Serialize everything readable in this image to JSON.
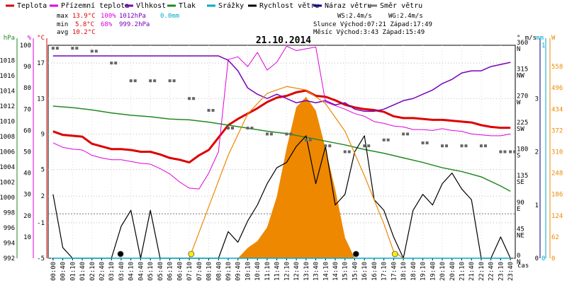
{
  "legend": [
    {
      "label": "Teplota",
      "color": "#dd0000"
    },
    {
      "label": "Přízemní teplota",
      "color": "#dd00dd"
    },
    {
      "label": "Vlhkost",
      "color": "#7700bb"
    },
    {
      "label": "Tlak",
      "color": "#228822"
    },
    {
      "label": "Srážky",
      "color": "#00aacc"
    },
    {
      "label": "Rychlost větru",
      "color": "#000000"
    },
    {
      "label": "Náraz větru",
      "color": "#000088"
    },
    {
      "label": "Směr větru",
      "color": "#777777"
    }
  ],
  "stats": {
    "max_label": "max",
    "max_temp": "13.9°C",
    "max_hum": "100%",
    "max_press": "1012hPa",
    "max_rain": "0.0mm",
    "min_label": "min",
    "min_temp": "5.8°C",
    "min_hum": "68%",
    "min_press": "999.2hPa",
    "avg_label": "avg",
    "avg_temp": "10.2°C",
    "ws": "WS:2.4m/s",
    "wg": "WG:2.4m/s",
    "sun": "Slunce Východ:07:21  Západ:17:49",
    "moon": "Měsíc  Východ:3:43  Západ:15:49"
  },
  "colors": {
    "temp": "#dd0000",
    "feels": "#dd00dd",
    "hum": "#7700bb",
    "press": "#228822",
    "rain": "#00aacc",
    "wind": "#000000",
    "gust": "#000088",
    "dir": "#666666",
    "sun": "#ee8800"
  },
  "chart_data": {
    "type": "line",
    "title": "21.10.2014",
    "x_ticks": [
      "00:00",
      "00:40",
      "01:10",
      "01:40",
      "02:10",
      "02:40",
      "03:10",
      "03:40",
      "04:10",
      "04:40",
      "05:10",
      "05:40",
      "06:10",
      "06:40",
      "07:10",
      "07:40",
      "08:10",
      "08:40",
      "09:10",
      "09:40",
      "10:10",
      "10:40",
      "11:10",
      "11:40",
      "12:10",
      "12:40",
      "13:10",
      "13:40",
      "14:10",
      "14:40",
      "15:10",
      "15:40",
      "16:10",
      "16:40",
      "17:10",
      "17:40",
      "18:10",
      "18:40",
      "19:10",
      "19:40",
      "20:10",
      "20:40",
      "21:10",
      "21:40",
      "22:10",
      "22:40",
      "23:10",
      "23:40"
    ],
    "x_axis_label": "čas",
    "axes": {
      "hpa": {
        "label": "hPa",
        "ticks": [
          992,
          994,
          996,
          998,
          1000,
          1002,
          1004,
          1006,
          1008,
          1010,
          1012,
          1014,
          1016,
          1018
        ],
        "range": [
          992,
          1020
        ]
      },
      "percent": {
        "label": "%",
        "ticks": [
          10,
          20,
          30,
          40,
          50,
          60,
          70,
          80,
          90,
          100
        ],
        "range": [
          0,
          100
        ]
      },
      "celsius": {
        "label": "°C",
        "ticks": [
          -5,
          -1,
          2,
          5,
          9,
          13,
          17
        ],
        "range": [
          -5,
          19
        ]
      },
      "degrees": {
        "label": "°",
        "ticks": [
          "0 N",
          "45 NE",
          "90 E",
          "135 SE",
          "180 S",
          "225 SW",
          "270 W",
          "315 NW",
          "360 N"
        ],
        "range": [
          0,
          360
        ]
      },
      "wind_ms": {
        "label": "m/s",
        "ticks": [
          0,
          1,
          2,
          3
        ],
        "range": [
          0,
          4
        ]
      },
      "rain_mm": {
        "label": "mm",
        "ticks": [
          0,
          1
        ],
        "range": [
          0,
          1
        ]
      },
      "solar_w": {
        "label": "W",
        "ticks": [
          0,
          62,
          124,
          186,
          248,
          310,
          372,
          434,
          496,
          558
        ],
        "range": [
          0,
          620
        ]
      }
    },
    "series": [
      {
        "name": "Teplota",
        "unit": "°C",
        "points": [
          [
            0,
            9.3
          ],
          [
            1,
            8.9
          ],
          [
            2,
            8.8
          ],
          [
            3,
            8.7
          ],
          [
            4,
            7.9
          ],
          [
            5,
            7.6
          ],
          [
            6,
            7.3
          ],
          [
            7,
            7.3
          ],
          [
            8,
            7.2
          ],
          [
            9,
            7.0
          ],
          [
            10,
            7.0
          ],
          [
            11,
            6.7
          ],
          [
            12,
            6.3
          ],
          [
            13,
            6.1
          ],
          [
            14,
            5.8
          ],
          [
            15,
            6.6
          ],
          [
            16,
            7.2
          ],
          [
            17,
            8.6
          ],
          [
            18,
            10.0
          ],
          [
            19,
            10.7
          ],
          [
            20,
            11.3
          ],
          [
            21,
            11.9
          ],
          [
            22,
            12.6
          ],
          [
            23,
            13.1
          ],
          [
            24,
            13.3
          ],
          [
            25,
            13.7
          ],
          [
            26,
            13.9
          ],
          [
            27,
            13.3
          ],
          [
            28,
            13.2
          ],
          [
            29,
            12.8
          ],
          [
            30,
            12.3
          ],
          [
            31,
            12.0
          ],
          [
            32,
            11.8
          ],
          [
            33,
            11.7
          ],
          [
            34,
            11.5
          ],
          [
            35,
            11.0
          ],
          [
            36,
            10.8
          ],
          [
            37,
            10.8
          ],
          [
            38,
            10.7
          ],
          [
            39,
            10.6
          ],
          [
            40,
            10.6
          ],
          [
            41,
            10.5
          ],
          [
            42,
            10.4
          ],
          [
            43,
            10.3
          ],
          [
            44,
            10.0
          ],
          [
            45,
            9.8
          ],
          [
            46,
            9.7
          ],
          [
            47,
            9.7
          ]
        ]
      },
      {
        "name": "Přízemní teplota",
        "unit": "°C",
        "points": [
          [
            0,
            8.0
          ],
          [
            1,
            7.5
          ],
          [
            2,
            7.3
          ],
          [
            3,
            7.2
          ],
          [
            4,
            6.6
          ],
          [
            5,
            6.3
          ],
          [
            6,
            6.1
          ],
          [
            7,
            6.1
          ],
          [
            8,
            5.9
          ],
          [
            9,
            5.7
          ],
          [
            10,
            5.6
          ],
          [
            11,
            5.1
          ],
          [
            12,
            4.5
          ],
          [
            13,
            3.6
          ],
          [
            14,
            2.9
          ],
          [
            15,
            2.8
          ],
          [
            16,
            4.6
          ],
          [
            17,
            7.0
          ],
          [
            18,
            17.4
          ],
          [
            19,
            17.7
          ],
          [
            20,
            16.6
          ],
          [
            21,
            18.2
          ],
          [
            22,
            16.2
          ],
          [
            23,
            17.1
          ],
          [
            24,
            18.9
          ],
          [
            25,
            18.4
          ],
          [
            26,
            18.6
          ],
          [
            27,
            18.8
          ],
          [
            28,
            12.6
          ],
          [
            29,
            12.2
          ],
          [
            30,
            11.8
          ],
          [
            31,
            11.3
          ],
          [
            32,
            11.0
          ],
          [
            33,
            10.4
          ],
          [
            34,
            10.2
          ],
          [
            35,
            9.9
          ],
          [
            36,
            9.8
          ],
          [
            37,
            9.5
          ],
          [
            38,
            9.5
          ],
          [
            39,
            9.4
          ],
          [
            40,
            9.6
          ],
          [
            41,
            9.4
          ],
          [
            42,
            9.3
          ],
          [
            43,
            9.0
          ],
          [
            44,
            8.9
          ],
          [
            45,
            8.8
          ],
          [
            46,
            8.8
          ],
          [
            47,
            9.0
          ]
        ]
      },
      {
        "name": "Vlhkost",
        "unit": "%",
        "points": [
          [
            0,
            95
          ],
          [
            4,
            95
          ],
          [
            8,
            95
          ],
          [
            12,
            95
          ],
          [
            16,
            95
          ],
          [
            17,
            95
          ],
          [
            18,
            93
          ],
          [
            19,
            88
          ],
          [
            20,
            80
          ],
          [
            21,
            77
          ],
          [
            22,
            75
          ],
          [
            23,
            77
          ],
          [
            24,
            75
          ],
          [
            25,
            73
          ],
          [
            26,
            74
          ],
          [
            27,
            73
          ],
          [
            28,
            74
          ],
          [
            29,
            72
          ],
          [
            30,
            73
          ],
          [
            31,
            70
          ],
          [
            32,
            69
          ],
          [
            33,
            69
          ],
          [
            34,
            70
          ],
          [
            35,
            72
          ],
          [
            36,
            74
          ],
          [
            37,
            75
          ],
          [
            38,
            77
          ],
          [
            39,
            79
          ],
          [
            40,
            82
          ],
          [
            41,
            84
          ],
          [
            42,
            87
          ],
          [
            43,
            88
          ],
          [
            44,
            88
          ],
          [
            45,
            90
          ],
          [
            46,
            91
          ],
          [
            47,
            92
          ]
        ]
      },
      {
        "name": "Tlak",
        "unit": "hPa",
        "points": [
          [
            0,
            1012
          ],
          [
            2,
            1011.8
          ],
          [
            4,
            1011.5
          ],
          [
            6,
            1011.1
          ],
          [
            8,
            1010.8
          ],
          [
            10,
            1010.6
          ],
          [
            12,
            1010.3
          ],
          [
            14,
            1010.2
          ],
          [
            16,
            1009.9
          ],
          [
            18,
            1009.5
          ],
          [
            20,
            1009.1
          ],
          [
            22,
            1008.7
          ],
          [
            24,
            1008.4
          ],
          [
            26,
            1007.9
          ],
          [
            28,
            1007.4
          ],
          [
            30,
            1006.9
          ],
          [
            32,
            1006.3
          ],
          [
            34,
            1005.8
          ],
          [
            36,
            1005.2
          ],
          [
            38,
            1004.6
          ],
          [
            40,
            1003.9
          ],
          [
            42,
            1003.4
          ],
          [
            44,
            1002.7
          ],
          [
            46,
            1001.5
          ],
          [
            47,
            1000.8
          ]
        ]
      },
      {
        "name": "Rychlost větru",
        "unit": "m/s",
        "points": [
          [
            0,
            1.2
          ],
          [
            1,
            0.2
          ],
          [
            2,
            0
          ],
          [
            3,
            0
          ],
          [
            4,
            0
          ],
          [
            5,
            0
          ],
          [
            6,
            0
          ],
          [
            7,
            0.6
          ],
          [
            8,
            0.9
          ],
          [
            9,
            0
          ],
          [
            10,
            0.9
          ],
          [
            11,
            0
          ],
          [
            12,
            0
          ],
          [
            13,
            0
          ],
          [
            14,
            0
          ],
          [
            15,
            0
          ],
          [
            16,
            0
          ],
          [
            17,
            0
          ],
          [
            18,
            0.5
          ],
          [
            19,
            0.3
          ],
          [
            20,
            0.7
          ],
          [
            21,
            1.0
          ],
          [
            22,
            1.4
          ],
          [
            23,
            1.7
          ],
          [
            24,
            1.8
          ],
          [
            25,
            2.1
          ],
          [
            26,
            2.3
          ],
          [
            27,
            1.4
          ],
          [
            28,
            2.1
          ],
          [
            29,
            1.0
          ],
          [
            30,
            1.2
          ],
          [
            31,
            2.0
          ],
          [
            32,
            2.3
          ],
          [
            33,
            1.1
          ],
          [
            34,
            0.9
          ],
          [
            35,
            0.4
          ],
          [
            36,
            0
          ],
          [
            37,
            0.9
          ],
          [
            38,
            1.2
          ],
          [
            39,
            1.0
          ],
          [
            40,
            1.4
          ],
          [
            41,
            1.6
          ],
          [
            42,
            1.3
          ],
          [
            43,
            1.1
          ],
          [
            44,
            0
          ],
          [
            45,
            0
          ],
          [
            46,
            0.4
          ],
          [
            47,
            0
          ]
        ]
      },
      {
        "name": "Směr větru",
        "unit": "°",
        "points": [
          [
            0,
            355
          ],
          [
            2,
            355
          ],
          [
            4,
            350
          ],
          [
            6,
            330
          ],
          [
            8,
            300
          ],
          [
            10,
            300
          ],
          [
            12,
            300
          ],
          [
            14,
            270
          ],
          [
            16,
            250
          ],
          [
            18,
            220
          ],
          [
            20,
            220
          ],
          [
            22,
            210
          ],
          [
            24,
            210
          ],
          [
            26,
            200
          ],
          [
            28,
            190
          ],
          [
            30,
            180
          ],
          [
            32,
            190
          ],
          [
            34,
            200
          ],
          [
            36,
            210
          ],
          [
            38,
            195
          ],
          [
            40,
            190
          ],
          [
            42,
            190
          ],
          [
            44,
            190
          ],
          [
            46,
            180
          ],
          [
            47,
            180
          ]
        ]
      },
      {
        "name": "Sluneční záření",
        "unit": "W",
        "points": [
          [
            14,
            0
          ],
          [
            16,
            150
          ],
          [
            18,
            300
          ],
          [
            20,
            420
          ],
          [
            22,
            480
          ],
          [
            24,
            500
          ],
          [
            26,
            490
          ],
          [
            28,
            450
          ],
          [
            30,
            370
          ],
          [
            32,
            240
          ],
          [
            34,
            100
          ],
          [
            35,
            20
          ],
          [
            36,
            0
          ]
        ]
      },
      {
        "name": "Srážky",
        "unit": "mm",
        "points": [
          [
            0,
            0
          ],
          [
            47,
            0
          ]
        ]
      }
    ],
    "solar_fill": [
      [
        19,
        0
      ],
      [
        20,
        30
      ],
      [
        21,
        50
      ],
      [
        22,
        90
      ],
      [
        23,
        180
      ],
      [
        24,
        320
      ],
      [
        25,
        440
      ],
      [
        26,
        470
      ],
      [
        27,
        430
      ],
      [
        28,
        320
      ],
      [
        29,
        200
      ],
      [
        30,
        60
      ],
      [
        31,
        0
      ]
    ],
    "markers": {
      "moonrise": "3:43",
      "sunrise": "07:21",
      "moonset": "15:49",
      "sunset": "17:49"
    },
    "grid": true
  }
}
